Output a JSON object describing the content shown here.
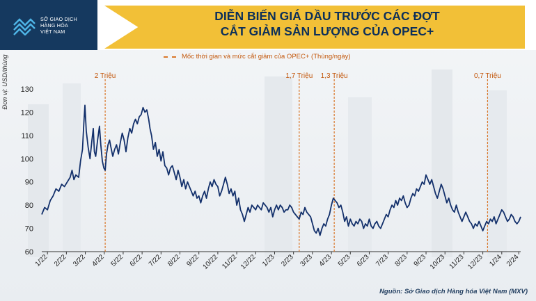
{
  "header": {
    "logo_lines": [
      "SỞ GIAO DỊCH",
      "HÀNG HÓA",
      "VIỆT NAM"
    ],
    "title_line1": "DIỄN BIẾN GIÁ DẦU TRƯỚC CÁC ĐỢT",
    "title_line2": "CẮT GIẢM SẢN LƯỢNG CỦA OPEC+"
  },
  "legend": {
    "label": "Mốc thời gian và mức cắt giảm của OPEC+ (Thùng/ngày)"
  },
  "source": "Nguồn: Sở Giao dịch Hàng hóa Việt Nam (MXV)",
  "colors": {
    "line": "#13306b",
    "marker": "#d9772a",
    "title": "#0c2f5a",
    "band": "#f2c037"
  },
  "chart_data": {
    "type": "line",
    "ylabel": "Đơn vị: USD/thùng",
    "ylim": [
      60,
      130
    ],
    "yticks": [
      60,
      70,
      80,
      90,
      100,
      110,
      120,
      130
    ],
    "xlim": [
      0,
      25.3
    ],
    "x_ticks": [
      {
        "x": 0.3,
        "label": "1/22"
      },
      {
        "x": 1.3,
        "label": "2/22"
      },
      {
        "x": 2.3,
        "label": "3/22"
      },
      {
        "x": 3.3,
        "label": "4/22"
      },
      {
        "x": 4.3,
        "label": "5/22"
      },
      {
        "x": 5.3,
        "label": "6/22"
      },
      {
        "x": 6.3,
        "label": "7/22"
      },
      {
        "x": 7.3,
        "label": "8/22"
      },
      {
        "x": 8.3,
        "label": "9/22"
      },
      {
        "x": 9.3,
        "label": "10/22"
      },
      {
        "x": 10.3,
        "label": "11/22"
      },
      {
        "x": 11.3,
        "label": "12/22"
      },
      {
        "x": 12.3,
        "label": "1/23"
      },
      {
        "x": 13.3,
        "label": "2/23"
      },
      {
        "x": 14.3,
        "label": "3/23"
      },
      {
        "x": 15.3,
        "label": "4/23"
      },
      {
        "x": 16.3,
        "label": "5/23"
      },
      {
        "x": 17.3,
        "label": "6/23"
      },
      {
        "x": 18.3,
        "label": "7/23"
      },
      {
        "x": 19.3,
        "label": "8/23"
      },
      {
        "x": 20.3,
        "label": "9/23"
      },
      {
        "x": 21.3,
        "label": "10/23"
      },
      {
        "x": 22.3,
        "label": "11/23"
      },
      {
        "x": 23.3,
        "label": "12/23"
      },
      {
        "x": 24.3,
        "label": "1/24"
      },
      {
        "x": 25.2,
        "label": "2/24"
      }
    ],
    "markers": [
      {
        "x": 3.35,
        "label": "2 Triệu"
      },
      {
        "x": 13.6,
        "label": "1,7 Triệu"
      },
      {
        "x": 15.45,
        "label": "1,3 Triệu"
      },
      {
        "x": 23.55,
        "label": "0,7 Triệu"
      }
    ],
    "series": [
      {
        "points": [
          [
            0.0,
            76
          ],
          [
            0.15,
            79
          ],
          [
            0.3,
            78
          ],
          [
            0.45,
            82
          ],
          [
            0.6,
            84
          ],
          [
            0.75,
            87
          ],
          [
            0.9,
            86
          ],
          [
            1.05,
            89
          ],
          [
            1.2,
            88
          ],
          [
            1.35,
            90
          ],
          [
            1.5,
            92
          ],
          [
            1.6,
            95
          ],
          [
            1.7,
            91
          ],
          [
            1.8,
            93
          ],
          [
            1.95,
            92
          ],
          [
            2.05,
            99
          ],
          [
            2.15,
            104
          ],
          [
            2.22,
            115
          ],
          [
            2.28,
            123
          ],
          [
            2.35,
            112
          ],
          [
            2.45,
            105
          ],
          [
            2.55,
            100
          ],
          [
            2.65,
            108
          ],
          [
            2.72,
            113
          ],
          [
            2.78,
            103
          ],
          [
            2.85,
            101
          ],
          [
            2.95,
            108
          ],
          [
            3.05,
            114
          ],
          [
            3.12,
            106
          ],
          [
            3.2,
            99
          ],
          [
            3.28,
            96
          ],
          [
            3.35,
            95
          ],
          [
            3.42,
            102
          ],
          [
            3.5,
            106
          ],
          [
            3.58,
            108
          ],
          [
            3.65,
            105
          ],
          [
            3.75,
            101
          ],
          [
            3.85,
            104
          ],
          [
            3.95,
            106
          ],
          [
            4.05,
            102
          ],
          [
            4.15,
            107
          ],
          [
            4.25,
            111
          ],
          [
            4.35,
            108
          ],
          [
            4.45,
            103
          ],
          [
            4.55,
            109
          ],
          [
            4.65,
            113
          ],
          [
            4.75,
            111
          ],
          [
            4.85,
            115
          ],
          [
            4.95,
            117
          ],
          [
            5.05,
            115
          ],
          [
            5.15,
            118
          ],
          [
            5.25,
            119
          ],
          [
            5.35,
            122
          ],
          [
            5.45,
            120
          ],
          [
            5.55,
            121
          ],
          [
            5.65,
            117
          ],
          [
            5.72,
            113
          ],
          [
            5.8,
            110
          ],
          [
            5.9,
            104
          ],
          [
            6.0,
            107
          ],
          [
            6.1,
            101
          ],
          [
            6.2,
            104
          ],
          [
            6.3,
            99
          ],
          [
            6.4,
            103
          ],
          [
            6.5,
            97
          ],
          [
            6.6,
            96
          ],
          [
            6.7,
            93
          ],
          [
            6.8,
            96
          ],
          [
            6.9,
            97
          ],
          [
            7.0,
            94
          ],
          [
            7.1,
            91
          ],
          [
            7.2,
            95
          ],
          [
            7.3,
            92
          ],
          [
            7.4,
            88
          ],
          [
            7.5,
            91
          ],
          [
            7.6,
            87
          ],
          [
            7.7,
            90
          ],
          [
            7.8,
            88
          ],
          [
            7.9,
            86
          ],
          [
            8.0,
            84
          ],
          [
            8.1,
            86
          ],
          [
            8.2,
            83
          ],
          [
            8.3,
            84
          ],
          [
            8.4,
            81
          ],
          [
            8.5,
            84
          ],
          [
            8.6,
            86
          ],
          [
            8.7,
            83
          ],
          [
            8.8,
            87
          ],
          [
            8.9,
            90
          ],
          [
            9.0,
            88
          ],
          [
            9.1,
            91
          ],
          [
            9.2,
            89
          ],
          [
            9.3,
            88
          ],
          [
            9.4,
            84
          ],
          [
            9.5,
            86
          ],
          [
            9.6,
            89
          ],
          [
            9.7,
            92
          ],
          [
            9.8,
            89
          ],
          [
            9.9,
            85
          ],
          [
            10.0,
            87
          ],
          [
            10.1,
            84
          ],
          [
            10.2,
            86
          ],
          [
            10.3,
            80
          ],
          [
            10.4,
            83
          ],
          [
            10.5,
            78
          ],
          [
            10.6,
            76
          ],
          [
            10.7,
            73
          ],
          [
            10.8,
            76
          ],
          [
            10.9,
            79
          ],
          [
            11.0,
            77
          ],
          [
            11.1,
            80
          ],
          [
            11.2,
            79
          ],
          [
            11.3,
            78
          ],
          [
            11.4,
            80
          ],
          [
            11.5,
            79
          ],
          [
            11.6,
            78
          ],
          [
            11.7,
            81
          ],
          [
            11.8,
            80
          ],
          [
            11.9,
            79
          ],
          [
            12.0,
            77
          ],
          [
            12.1,
            79
          ],
          [
            12.2,
            75
          ],
          [
            12.3,
            78
          ],
          [
            12.4,
            80
          ],
          [
            12.5,
            78
          ],
          [
            12.6,
            80
          ],
          [
            12.7,
            79
          ],
          [
            12.8,
            77
          ],
          [
            12.9,
            78
          ],
          [
            13.0,
            78
          ],
          [
            13.1,
            80
          ],
          [
            13.2,
            79
          ],
          [
            13.3,
            77
          ],
          [
            13.4,
            76
          ],
          [
            13.5,
            75
          ],
          [
            13.6,
            74
          ],
          [
            13.7,
            77
          ],
          [
            13.8,
            76
          ],
          [
            13.9,
            79
          ],
          [
            14.0,
            77
          ],
          [
            14.1,
            76
          ],
          [
            14.2,
            75
          ],
          [
            14.3,
            72
          ],
          [
            14.4,
            69
          ],
          [
            14.5,
            68
          ],
          [
            14.6,
            70
          ],
          [
            14.7,
            67
          ],
          [
            14.8,
            70
          ],
          [
            14.9,
            72
          ],
          [
            15.0,
            71
          ],
          [
            15.1,
            74
          ],
          [
            15.2,
            76
          ],
          [
            15.3,
            80
          ],
          [
            15.4,
            83
          ],
          [
            15.5,
            82
          ],
          [
            15.6,
            81
          ],
          [
            15.7,
            79
          ],
          [
            15.8,
            80
          ],
          [
            15.9,
            77
          ],
          [
            16.0,
            73
          ],
          [
            16.1,
            75
          ],
          [
            16.2,
            71
          ],
          [
            16.3,
            74
          ],
          [
            16.4,
            72
          ],
          [
            16.5,
            71
          ],
          [
            16.6,
            73
          ],
          [
            16.7,
            72
          ],
          [
            16.8,
            74
          ],
          [
            16.9,
            73
          ],
          [
            17.0,
            70
          ],
          [
            17.1,
            72
          ],
          [
            17.2,
            71
          ],
          [
            17.3,
            74
          ],
          [
            17.4,
            71
          ],
          [
            17.5,
            70
          ],
          [
            17.6,
            72
          ],
          [
            17.7,
            73
          ],
          [
            17.8,
            71
          ],
          [
            17.9,
            70
          ],
          [
            18.0,
            72
          ],
          [
            18.1,
            74
          ],
          [
            18.2,
            76
          ],
          [
            18.3,
            75
          ],
          [
            18.4,
            78
          ],
          [
            18.5,
            80
          ],
          [
            18.6,
            79
          ],
          [
            18.7,
            82
          ],
          [
            18.8,
            80
          ],
          [
            18.9,
            83
          ],
          [
            19.0,
            82
          ],
          [
            19.1,
            84
          ],
          [
            19.2,
            81
          ],
          [
            19.3,
            79
          ],
          [
            19.4,
            80
          ],
          [
            19.5,
            83
          ],
          [
            19.6,
            85
          ],
          [
            19.7,
            84
          ],
          [
            19.8,
            87
          ],
          [
            19.9,
            86
          ],
          [
            20.0,
            88
          ],
          [
            20.1,
            90
          ],
          [
            20.2,
            89
          ],
          [
            20.3,
            93
          ],
          [
            20.4,
            91
          ],
          [
            20.5,
            89
          ],
          [
            20.6,
            91
          ],
          [
            20.7,
            88
          ],
          [
            20.8,
            85
          ],
          [
            20.9,
            83
          ],
          [
            21.0,
            86
          ],
          [
            21.1,
            89
          ],
          [
            21.2,
            87
          ],
          [
            21.3,
            84
          ],
          [
            21.4,
            81
          ],
          [
            21.5,
            83
          ],
          [
            21.6,
            80
          ],
          [
            21.7,
            78
          ],
          [
            21.8,
            77
          ],
          [
            21.9,
            80
          ],
          [
            22.0,
            77
          ],
          [
            22.1,
            75
          ],
          [
            22.2,
            73
          ],
          [
            22.3,
            75
          ],
          [
            22.4,
            77
          ],
          [
            22.5,
            75
          ],
          [
            22.6,
            73
          ],
          [
            22.7,
            72
          ],
          [
            22.8,
            70
          ],
          [
            22.9,
            72
          ],
          [
            23.0,
            71
          ],
          [
            23.1,
            73
          ],
          [
            23.2,
            71
          ],
          [
            23.3,
            69
          ],
          [
            23.4,
            71
          ],
          [
            23.5,
            73
          ],
          [
            23.6,
            72
          ],
          [
            23.7,
            74
          ],
          [
            23.8,
            73
          ],
          [
            23.9,
            75
          ],
          [
            24.0,
            72
          ],
          [
            24.1,
            74
          ],
          [
            24.2,
            76
          ],
          [
            24.3,
            78
          ],
          [
            24.4,
            77
          ],
          [
            24.5,
            75
          ],
          [
            24.6,
            73
          ],
          [
            24.7,
            74
          ],
          [
            24.8,
            76
          ],
          [
            24.9,
            75
          ],
          [
            25.0,
            73
          ],
          [
            25.1,
            72
          ],
          [
            25.2,
            73
          ],
          [
            25.3,
            75
          ]
        ]
      }
    ]
  }
}
